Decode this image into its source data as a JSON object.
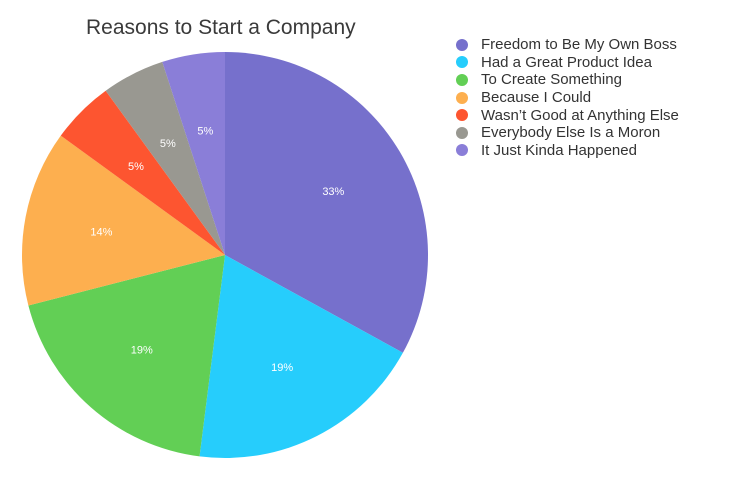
{
  "chart_data": {
    "type": "pie",
    "title": "Reasons to Start a Company",
    "categories": [
      "Freedom to Be My Own Boss",
      "Had a Great Product Idea",
      "To Create Something",
      "Because I Could",
      "Wasn’t Good at Anything Else",
      "Everybody Else Is a Moron",
      "It Just Kinda Happened"
    ],
    "values": [
      33,
      19,
      19,
      14,
      5,
      5,
      5
    ],
    "labels": [
      "33%",
      "19%",
      "19%",
      "14%",
      "5%",
      "5%",
      "5%"
    ],
    "colors": [
      "#7670cc",
      "#26cdfc",
      "#62cf55",
      "#fdaf4f",
      "#fd5530",
      "#999891",
      "#8a7ed8"
    ],
    "legend_position": "right"
  }
}
